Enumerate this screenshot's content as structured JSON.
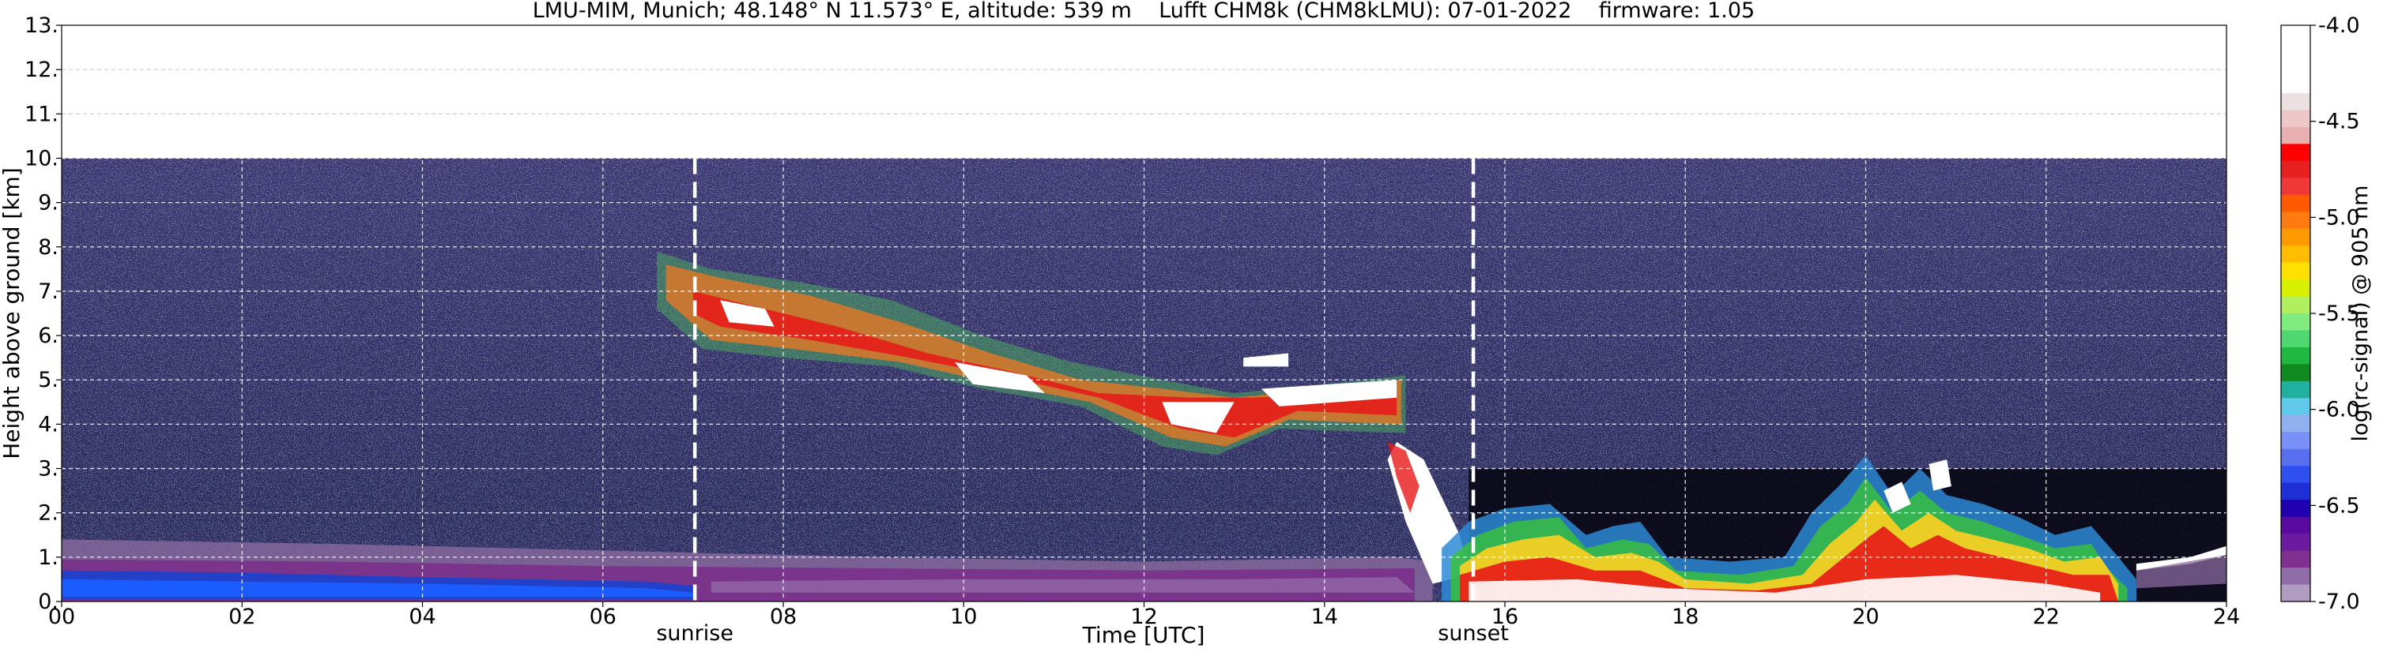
{
  "chart_data": {
    "type": "heatmap",
    "title": "LMU-MIM, Munich; 48.148° N 11.573° E, altitude: 539 m    Lufft CHM8k (CHM8kLMU): 07-01-2022    firmware: 1.05",
    "xlabel": "Time [UTC]",
    "ylabel": "Height above ground [km]",
    "xlim": [
      0,
      24
    ],
    "ylim": [
      0,
      13
    ],
    "x_ticks": [
      "00",
      "02",
      "04",
      "06",
      "08",
      "10",
      "12",
      "14",
      "16",
      "18",
      "20",
      "22",
      "24"
    ],
    "y_ticks": [
      "0.",
      "1.",
      "2.",
      "3.",
      "4.",
      "5.",
      "6.",
      "7.",
      "8.",
      "9.",
      "10.",
      "11.",
      "12.",
      "13."
    ],
    "grid": true,
    "measurement_top_km": 10.0,
    "annotations": [
      {
        "text": "sunrise",
        "x": 7.02
      },
      {
        "text": "sunset",
        "x": 15.65
      }
    ],
    "colorbar": {
      "label": "log(rc-signal) @ 905 nm",
      "range": [
        -7.0,
        -4.0
      ],
      "ticks": [
        "-4.0",
        "-4.5",
        "-5.0",
        "-5.5",
        "-6.0",
        "-6.5",
        "-7.0"
      ]
    },
    "features": [
      {
        "name": "boundary layer",
        "description": "Aerosol layer below ~1 km, blue/purple tones, 00–15 UTC"
      },
      {
        "name": "cirrus",
        "description": "High clouds descending from ~7.5 km near 06:40 UTC to ~4 km near 14:50 UTC"
      },
      {
        "name": "low clouds",
        "description": "Saturated low-level returns from ~15:00 UTC to ~22:50 UTC, tops up to ~3.5 km"
      }
    ]
  }
}
